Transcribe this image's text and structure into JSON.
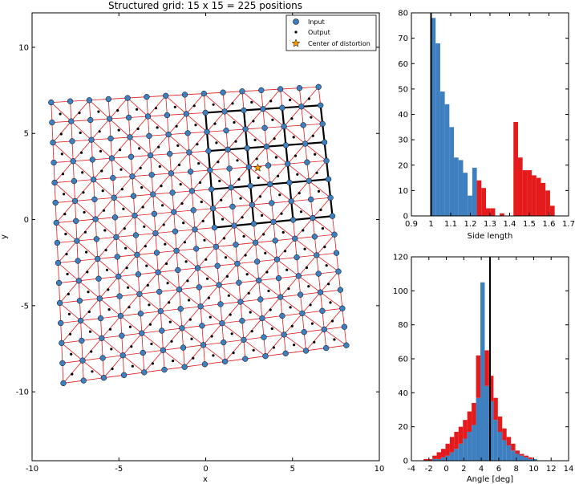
{
  "chart_data": [
    {
      "type": "scatter",
      "title": "Structured grid: 15 x 15 = 225 positions",
      "xlabel": "x",
      "ylabel": "y",
      "xlim": [
        -10,
        10
      ],
      "ylim": [
        -14,
        12
      ],
      "xticks": [
        -10,
        -5,
        0,
        5,
        10
      ],
      "yticks": [
        -10,
        -5,
        0,
        5,
        10
      ],
      "grid_rows": 15,
      "grid_cols": 15,
      "grid_corners": {
        "bottom_left": [
          -8.2,
          -9.5
        ],
        "bottom_right": [
          8.1,
          -7.3
        ],
        "top_left": [
          -8.9,
          6.8
        ],
        "top_right": [
          6.5,
          7.7
        ]
      },
      "center_of_distortion": [
        3.0,
        3.0
      ],
      "legend": {
        "placement": "top-right",
        "entries": [
          "Input",
          "Output",
          "Center of distortion"
        ]
      },
      "colors": {
        "input": "#3d7fbf",
        "output": "#000000",
        "mesh": "#e41a1c",
        "highlight": "#000000",
        "center": "#ff9800"
      }
    },
    {
      "type": "bar",
      "subtype": "stacked-histogram",
      "xlabel": "Side length",
      "ylabel": "",
      "xlim": [
        0.9,
        1.7
      ],
      "ylim": [
        0,
        80
      ],
      "xticks": [
        0.9,
        1.0,
        1.1,
        1.2,
        1.3,
        1.4,
        1.5,
        1.6,
        1.7
      ],
      "yticks": [
        0,
        10,
        20,
        30,
        40,
        50,
        60,
        70,
        80
      ],
      "bin_start": 1.0,
      "bin_width": 0.0233,
      "reference_line": 1.0,
      "series": [
        {
          "color": "#3d7fbf",
          "values": [
            78,
            68,
            49,
            44,
            35,
            23,
            22,
            17,
            8,
            19,
            0,
            0,
            0,
            0,
            0,
            0,
            0,
            0,
            0,
            0,
            0,
            0,
            0,
            0,
            0,
            0,
            0,
            0,
            0,
            0
          ]
        },
        {
          "color": "#e41a1c",
          "values": [
            0,
            0,
            0,
            0,
            0,
            0,
            0,
            0,
            0,
            0,
            14,
            11,
            3,
            3,
            0,
            1,
            0,
            0,
            37,
            23,
            18,
            18,
            16,
            15,
            13,
            10,
            4,
            0,
            0,
            0
          ]
        }
      ]
    },
    {
      "type": "bar",
      "subtype": "stacked-histogram",
      "xlabel": "Angle [deg]",
      "ylabel": "",
      "xlim": [
        -4,
        14
      ],
      "ylim": [
        0,
        120
      ],
      "xticks": [
        -4,
        -2,
        0,
        2,
        4,
        6,
        8,
        10,
        12,
        14
      ],
      "yticks": [
        0,
        20,
        40,
        60,
        80,
        100,
        120
      ],
      "bin_start": -2.6,
      "bin_width": 0.5,
      "reference_line": 5.0,
      "series": [
        {
          "color": "#3d7fbf",
          "values": [
            0,
            0,
            1,
            1,
            2,
            3,
            5,
            7,
            10,
            13,
            17,
            21,
            37,
            105,
            44,
            35,
            24,
            17,
            12,
            9,
            6,
            4,
            3,
            2,
            1,
            1,
            0,
            0,
            0,
            0
          ]
        },
        {
          "color": "#e41a1c",
          "values": [
            1,
            1,
            2,
            4,
            5,
            7,
            9,
            10,
            10,
            11,
            12,
            13,
            25,
            0,
            21,
            15,
            13,
            9,
            7,
            5,
            4,
            2,
            1,
            1,
            1,
            0,
            0,
            0,
            0,
            0
          ]
        }
      ]
    }
  ]
}
